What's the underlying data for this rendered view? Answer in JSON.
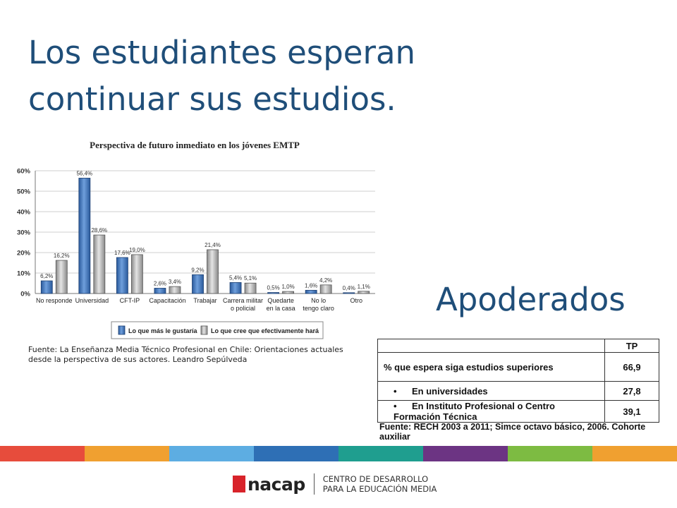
{
  "slide": {
    "title_line1": "Los estudiantes esperan",
    "title_line2": "continuar sus estudios.",
    "apoderados": "Apoderados",
    "source_note": "Fuente: La Enseñanza  Media Técnico Profesional en Chile: Orientaciones actuales desde la perspectiva de sus actores. Leandro Sepúlveda"
  },
  "chart_data": {
    "type": "bar",
    "title": "Perspectiva de futuro inmediato en los jóvenes EMTP",
    "categories": [
      "No responde",
      "Universidad",
      "CFT-IP",
      "Capacitación",
      "Trabajar",
      "Carrera militar o policial",
      "Quedarte en la casa",
      "No lo tengo claro",
      "Otro"
    ],
    "category_lines": [
      [
        "No responde"
      ],
      [
        "Universidad"
      ],
      [
        "CFT-IP"
      ],
      [
        "Capacitación"
      ],
      [
        "Trabajar"
      ],
      [
        "Carrera militar",
        "o policial"
      ],
      [
        "Quedarte",
        "en la casa"
      ],
      [
        "No lo",
        "tengo claro"
      ],
      [
        "Otro"
      ]
    ],
    "series": [
      {
        "name": "Lo que más le gustaría",
        "values": [
          6.2,
          56.4,
          17.6,
          2.6,
          9.2,
          5.4,
          0.5,
          1.6,
          0.4
        ],
        "labels": [
          "6,2%",
          "56,4%",
          "17,6%",
          "2,6%",
          "9,2%",
          "5,4%",
          "0,5%",
          "1,6%",
          "0,4%"
        ],
        "color": "#3a6fb7"
      },
      {
        "name": "Lo que cree que efectivamente hará",
        "values": [
          16.2,
          28.6,
          19.0,
          3.4,
          21.4,
          5.1,
          1.0,
          4.2,
          1.1
        ],
        "labels": [
          "16,2%",
          "28,6%",
          "19,0%",
          "3,4%",
          "21,4%",
          "5,1%",
          "1,0%",
          "4,2%",
          "1,1%"
        ],
        "color": "#a6a6a6"
      }
    ],
    "yticks": [
      0,
      10,
      20,
      30,
      40,
      50,
      60
    ],
    "ytick_labels": [
      "0%",
      "10%",
      "20%",
      "30%",
      "40%",
      "50%",
      "60%"
    ],
    "ylim": [
      0,
      60
    ],
    "grid": true,
    "legend": "bottom"
  },
  "tp_table": {
    "header": "TP",
    "rows": [
      {
        "label": "% que espera siga estudios superiores",
        "value": "66,9",
        "bullet": ""
      },
      {
        "label": "En universidades",
        "value": "27,8",
        "bullet": "•"
      },
      {
        "label": "En Instituto Profesional o Centro Formación Técnica",
        "value": "39,1",
        "bullet": "•"
      }
    ],
    "source": "Fuente: RECH 2003 a 2011; Simce octavo básico, 2006. Cohorte auxiliar"
  },
  "footer": {
    "stripe_colors": [
      "#e74c3c",
      "#f0a030",
      "#5dade2",
      "#2e6fb5",
      "#1f9e8f",
      "#6c3483",
      "#7dbb42",
      "#f0a030"
    ],
    "logo_text": "nacap",
    "logo_line1": "CENTRO DE DESARROLLO",
    "logo_line2": "PARA LA EDUCACIÓN MEDIA"
  }
}
